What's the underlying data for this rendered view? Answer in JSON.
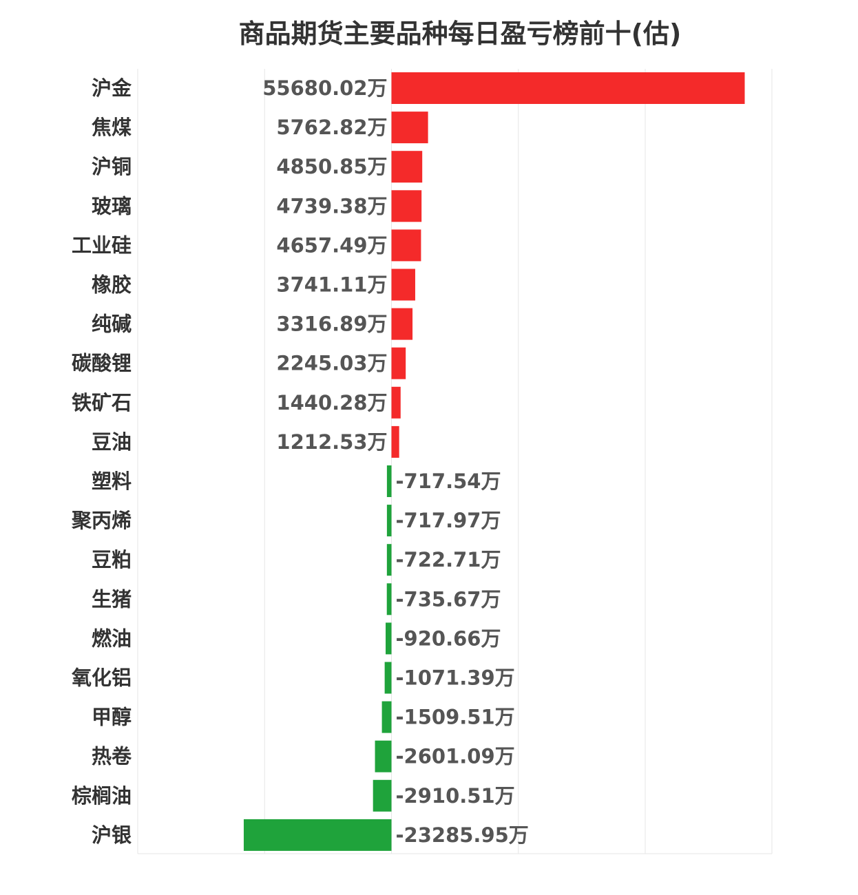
{
  "chart_data": {
    "type": "bar",
    "orientation": "horizontal",
    "title": "商品期货主要品种每日盈亏榜前十(估)",
    "xlabel": "",
    "ylabel": "",
    "unit": "万",
    "grid": true,
    "xlim": [
      -40000,
      60000
    ],
    "colors": {
      "positive": "#f42a2a",
      "negative": "#1fa33b"
    },
    "categories": [
      "沪金",
      "焦煤",
      "沪铜",
      "玻璃",
      "工业硅",
      "橡胶",
      "纯碱",
      "碳酸锂",
      "铁矿石",
      "豆油",
      "塑料",
      "聚丙烯",
      "豆粕",
      "生猪",
      "燃油",
      "氧化铝",
      "甲醇",
      "热卷",
      "棕榈油",
      "沪银"
    ],
    "values": [
      55680.02,
      5762.82,
      4850.85,
      4739.38,
      4657.49,
      3741.11,
      3316.89,
      2245.03,
      1440.28,
      1212.53,
      -717.54,
      -717.97,
      -722.71,
      -735.67,
      -920.66,
      -1071.39,
      -1509.51,
      -2601.09,
      -2910.51,
      -23285.95
    ],
    "data_labels": [
      "55680.02万",
      "5762.82万",
      "4850.85万",
      "4739.38万",
      "4657.49万",
      "3741.11万",
      "3316.89万",
      "2245.03万",
      "1440.28万",
      "1212.53万",
      "-717.54万",
      "-717.97万",
      "-722.71万",
      "-735.67万",
      "-920.66万",
      "-1071.39万",
      "-1509.51万",
      "-2601.09万",
      "-2910.51万",
      "-23285.95万"
    ]
  }
}
